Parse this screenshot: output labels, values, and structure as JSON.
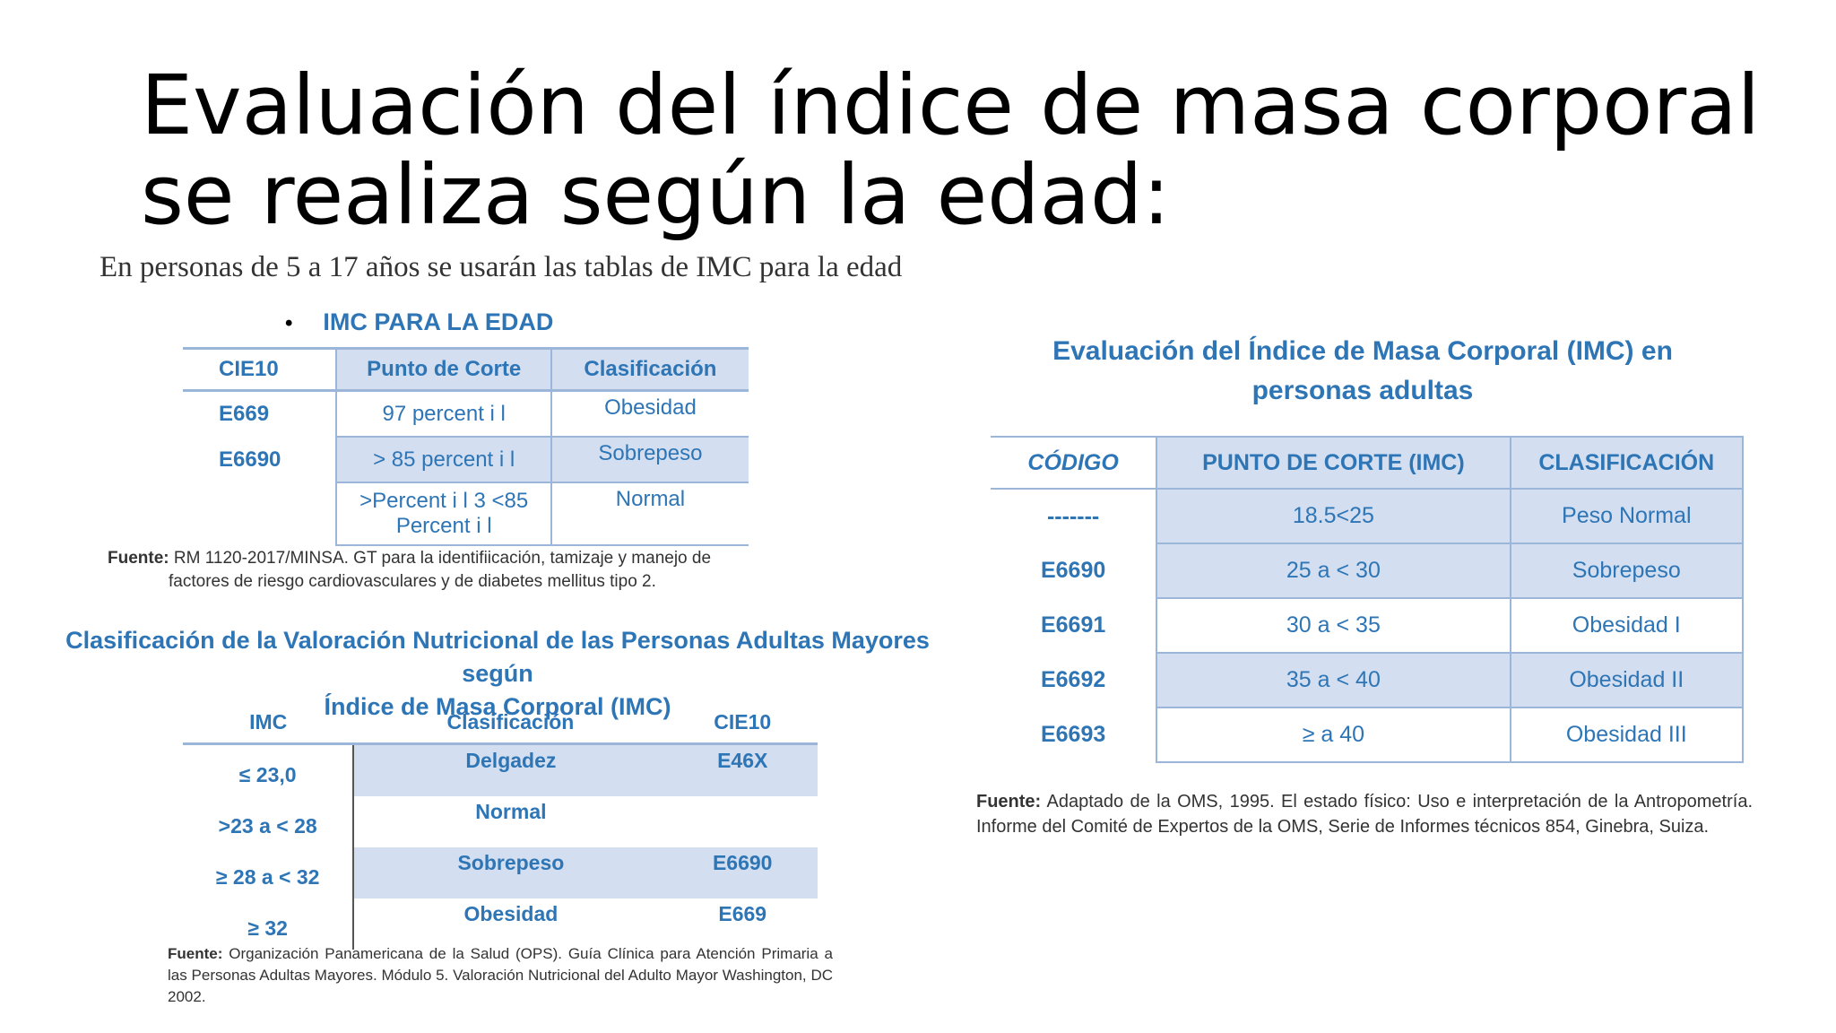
{
  "title": {
    "line1": "Evaluación del índice de masa corporal",
    "line2": "se realiza según la edad:"
  },
  "intro": "En personas de 5 a 17 años se usarán las tablas de IMC para la edad",
  "children_table": {
    "bullet": "•",
    "heading": "IMC PARA LA EDAD",
    "headers": [
      "CIE10",
      "Punto de Corte",
      "Clasificación"
    ],
    "rows": [
      {
        "code": "E669",
        "cut": "97 percent i l",
        "class": "Obesidad"
      },
      {
        "code": "E6690",
        "cut": "> 85 percent i l",
        "class": "Sobrepeso"
      },
      {
        "code": "",
        "cut_line1": ">Percent i l 3 <85",
        "cut_line2": "Percent i l",
        "class": "Normal"
      }
    ],
    "source_label": "Fuente:",
    "source_line1": "RM 1120-2017/MINSA. GT para la identifiicación, tamizaje y manejo de",
    "source_line2": "factores de riesgo cardiovasculares y de diabetes mellitus tipo 2."
  },
  "older_table": {
    "heading_line1": "Clasificación de la Valoración Nutricional de las Personas Adultas Mayores según",
    "heading_line2": "Índice de Masa Corporal (IMC)",
    "headers": [
      "IMC",
      "Clasificación",
      "CIE10"
    ],
    "rows": [
      {
        "imc": "≤ 23,0",
        "class": "Delgadez",
        "code": "E46X"
      },
      {
        "imc": ">23 a < 28",
        "class": "Normal",
        "code": ""
      },
      {
        "imc": "≥ 28 a < 32",
        "class": "Sobrepeso",
        "code": "E6690"
      },
      {
        "imc": "≥ 32",
        "class": "Obesidad",
        "code": "E669"
      }
    ],
    "source_label": "Fuente:",
    "source_text": "Organización Panamericana de la Salud (OPS). Guía Clínica para Atención Primaria a las Personas Adultas Mayores. Módulo 5. Valoración Nutricional del Adulto Mayor Washington, DC 2002."
  },
  "adult_table": {
    "heading_line1": "Evaluación del Índice de Masa Corporal (IMC) en",
    "heading_line2": "personas adultas",
    "headers": [
      "CÓDIGO",
      "PUNTO DE CORTE (IMC)",
      "CLASIFICACIÓN"
    ],
    "rows": [
      {
        "code": "-------",
        "cut": "18.5<25",
        "class": "Peso Normal"
      },
      {
        "code": "E6690",
        "cut": "25 a < 30",
        "class": "Sobrepeso"
      },
      {
        "code": "E6691",
        "cut": "30 a < 35",
        "class": "Obesidad I"
      },
      {
        "code": "E6692",
        "cut": "35 a < 40",
        "class": "Obesidad II"
      },
      {
        "code": "E6693",
        "cut": "≥ a 40",
        "class": "Obesidad III"
      }
    ],
    "source_label": "Fuente:",
    "source_text": "Adaptado de la OMS, 1995. El estado físico: Uso e interpretación de la Antropometría. Informe del Comité de Expertos de la OMS, Serie de Informes técnicos 854, Ginebra, Suiza."
  }
}
